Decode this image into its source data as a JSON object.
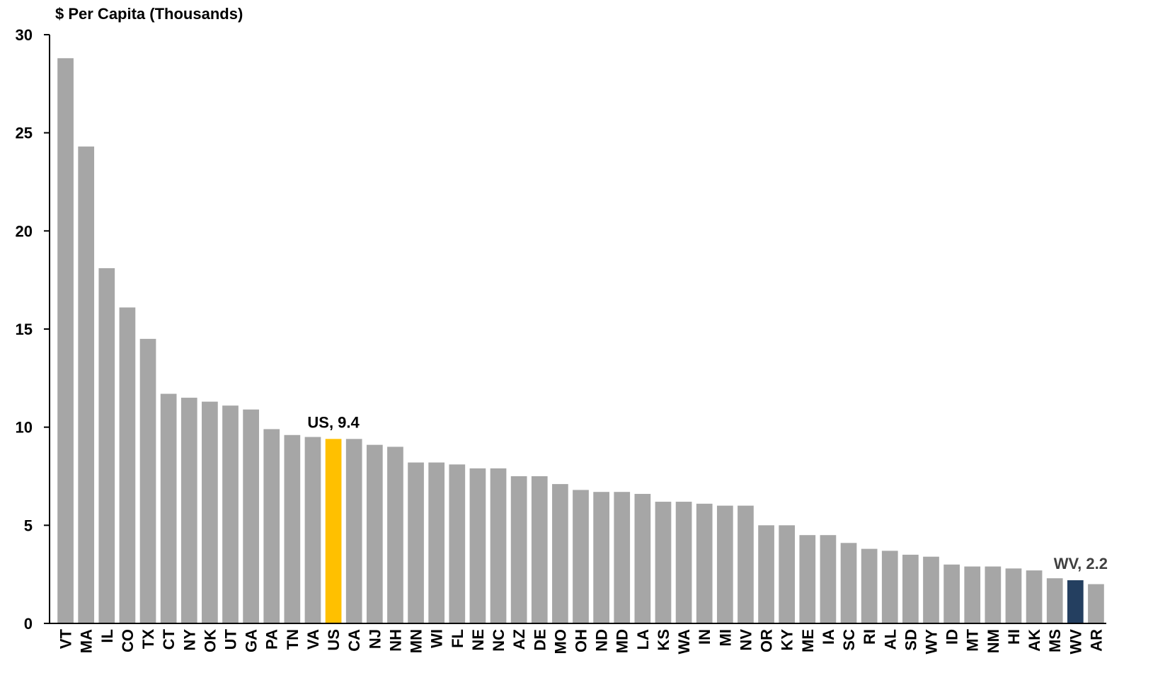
{
  "chart_data": {
    "type": "bar",
    "ylabel": "$ Per Capita (Thousands)",
    "ylim": [
      0,
      30
    ],
    "yticks": [
      "0",
      "5",
      "10",
      "15",
      "20",
      "25",
      "30"
    ],
    "grid": false,
    "categories": [
      "VT",
      "MA",
      "IL",
      "CO",
      "TX",
      "CT",
      "NY",
      "OK",
      "UT",
      "GA",
      "PA",
      "TN",
      "VA",
      "US",
      "CA",
      "NJ",
      "NH",
      "MN",
      "WI",
      "FL",
      "NE",
      "NC",
      "AZ",
      "DE",
      "MO",
      "OH",
      "ND",
      "MD",
      "LA",
      "KS",
      "WA",
      "IN",
      "MI",
      "NV",
      "OR",
      "KY",
      "ME",
      "IA",
      "SC",
      "RI",
      "AL",
      "SD",
      "WY",
      "ID",
      "MT",
      "NM",
      "HI",
      "AK",
      "MS",
      "WV",
      "AR"
    ],
    "values": [
      28.8,
      24.3,
      18.1,
      16.1,
      14.5,
      11.7,
      11.5,
      11.3,
      11.1,
      10.9,
      9.9,
      9.6,
      9.5,
      9.4,
      9.4,
      9.1,
      9.0,
      8.2,
      8.2,
      8.1,
      7.9,
      7.9,
      7.5,
      7.5,
      7.1,
      6.8,
      6.7,
      6.7,
      6.6,
      6.2,
      6.2,
      6.1,
      6.0,
      6.0,
      5.0,
      5.0,
      4.5,
      4.5,
      4.1,
      3.8,
      3.7,
      3.5,
      3.4,
      3.0,
      2.9,
      2.9,
      2.8,
      2.7,
      2.3,
      2.2,
      2.0
    ],
    "colors": {
      "default": "#a6a6a6",
      "highlight_us": "#ffc000",
      "highlight_wv": "#243f60"
    },
    "highlights": {
      "US": "highlight_us",
      "WV": "highlight_wv"
    },
    "annotations": [
      {
        "category": "US",
        "text": "US, 9.4",
        "color": "#000000"
      },
      {
        "category": "WV",
        "text": "WV, 2.2",
        "color": "#404040"
      }
    ]
  }
}
